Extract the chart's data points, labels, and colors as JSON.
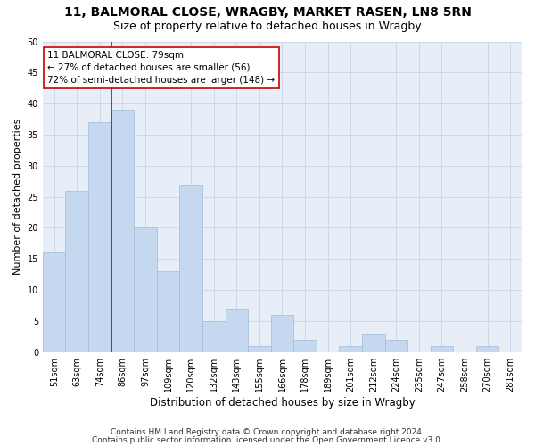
{
  "title1": "11, BALMORAL CLOSE, WRAGBY, MARKET RASEN, LN8 5RN",
  "title2": "Size of property relative to detached houses in Wragby",
  "xlabel": "Distribution of detached houses by size in Wragby",
  "ylabel": "Number of detached properties",
  "categories": [
    "51sqm",
    "63sqm",
    "74sqm",
    "86sqm",
    "97sqm",
    "109sqm",
    "120sqm",
    "132sqm",
    "143sqm",
    "155sqm",
    "166sqm",
    "178sqm",
    "189sqm",
    "201sqm",
    "212sqm",
    "224sqm",
    "235sqm",
    "247sqm",
    "258sqm",
    "270sqm",
    "281sqm"
  ],
  "values": [
    16,
    26,
    37,
    39,
    20,
    13,
    27,
    5,
    7,
    1,
    6,
    2,
    0,
    1,
    3,
    2,
    0,
    1,
    0,
    1,
    0
  ],
  "bar_color": "#c5d8f0",
  "bar_edge_color": "#a0bcd8",
  "vline_color": "#cc0000",
  "annotation_text": "11 BALMORAL CLOSE: 79sqm\n← 27% of detached houses are smaller (56)\n72% of semi-detached houses are larger (148) →",
  "annotation_box_color": "#ffffff",
  "annotation_box_edge": "#cc0000",
  "ylim": [
    0,
    50
  ],
  "yticks": [
    0,
    5,
    10,
    15,
    20,
    25,
    30,
    35,
    40,
    45,
    50
  ],
  "grid_color": "#c8d4e8",
  "background_color": "#e8eef8",
  "footer1": "Contains HM Land Registry data © Crown copyright and database right 2024.",
  "footer2": "Contains public sector information licensed under the Open Government Licence v3.0.",
  "title1_fontsize": 10,
  "title2_fontsize": 9,
  "xlabel_fontsize": 8.5,
  "ylabel_fontsize": 8,
  "tick_fontsize": 7,
  "annotation_fontsize": 7.5,
  "footer_fontsize": 6.5
}
